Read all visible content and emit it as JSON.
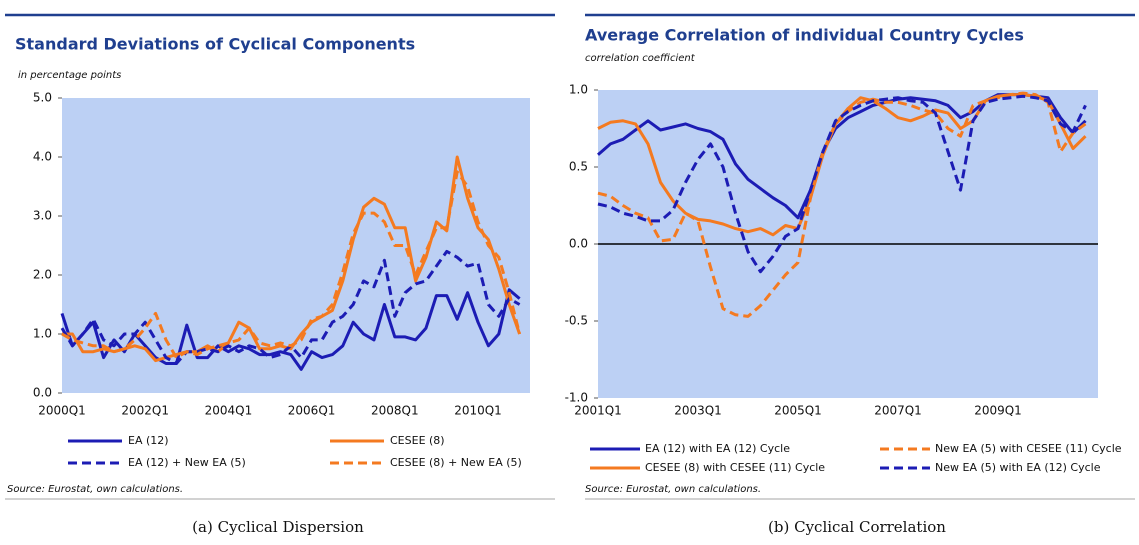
{
  "chart_data": [
    {
      "type": "line",
      "title": "Standard Deviations of Cyclical Components",
      "subtitle": "in percentage points",
      "source": "Source: Eurostat, own calculations.",
      "caption": "(a)  Cyclical Dispersion",
      "categories": [
        "2000Q1",
        null,
        null,
        null,
        null,
        null,
        null,
        null,
        "2002Q1",
        null,
        null,
        null,
        null,
        null,
        null,
        null,
        "2004Q1",
        null,
        null,
        null,
        null,
        null,
        null,
        null,
        "2006Q1",
        null,
        null,
        null,
        null,
        null,
        null,
        null,
        "2008Q1",
        null,
        null,
        null,
        null,
        null,
        null,
        null,
        "2010Q1",
        null,
        null,
        null,
        null
      ],
      "ylim": [
        0,
        5
      ],
      "yticks": [
        {
          "value": 0,
          "label": "0.0"
        },
        {
          "value": 1,
          "label": "1.0"
        },
        {
          "value": 2,
          "label": "2.0"
        },
        {
          "value": 3,
          "label": "3.0"
        },
        {
          "value": 4,
          "label": "4.0"
        },
        {
          "value": 5,
          "label": "5.0"
        }
      ],
      "plot_background": "#bcd0f4",
      "series": [
        {
          "name": "EA (12)",
          "color": "#1c1cb4",
          "dashed": false,
          "values": [
            1.35,
            0.8,
            1.0,
            1.2,
            0.6,
            0.9,
            0.7,
            1.0,
            0.8,
            0.6,
            0.5,
            0.5,
            1.15,
            0.6,
            0.6,
            0.8,
            0.7,
            0.8,
            0.75,
            0.65,
            0.65,
            0.7,
            0.65,
            0.4,
            0.7,
            0.6,
            0.65,
            0.8,
            1.2,
            1.0,
            0.9,
            1.5,
            0.95,
            0.95,
            0.9,
            1.1,
            1.65,
            1.65,
            1.25,
            1.7,
            1.2,
            0.8,
            1.0,
            1.75,
            1.6
          ]
        },
        {
          "name": "CESEE (8)",
          "color": "#f47a20",
          "dashed": false,
          "values": [
            1.0,
            1.0,
            0.7,
            0.7,
            0.75,
            0.7,
            0.75,
            0.8,
            0.75,
            0.55,
            0.6,
            0.65,
            0.7,
            0.7,
            0.8,
            0.7,
            0.85,
            1.2,
            1.1,
            0.75,
            0.75,
            0.8,
            0.75,
            1.0,
            1.2,
            1.3,
            1.4,
            1.9,
            2.6,
            3.15,
            3.3,
            3.2,
            2.8,
            2.8,
            1.9,
            2.3,
            2.9,
            2.75,
            4.0,
            3.3,
            2.8,
            2.6,
            2.1,
            1.5,
            1.0
          ]
        },
        {
          "name": "EA (12) + New EA (5)",
          "color": "#1c1cb4",
          "dashed": true,
          "values": [
            1.1,
            0.8,
            1.0,
            1.25,
            0.9,
            0.8,
            1.0,
            1.0,
            1.2,
            0.9,
            0.6,
            0.5,
            0.7,
            0.7,
            0.75,
            0.7,
            0.8,
            0.7,
            0.8,
            0.75,
            0.6,
            0.65,
            0.8,
            0.6,
            0.9,
            0.9,
            1.2,
            1.3,
            1.5,
            1.9,
            1.8,
            2.25,
            1.3,
            1.7,
            1.85,
            1.9,
            2.15,
            2.4,
            2.3,
            2.15,
            2.2,
            1.5,
            1.3,
            1.6,
            1.5
          ]
        },
        {
          "name": "CESEE (8) + New EA (5)",
          "color": "#f47a20",
          "dashed": true,
          "values": [
            1.0,
            0.9,
            0.85,
            0.8,
            0.8,
            0.7,
            0.75,
            0.9,
            1.1,
            1.35,
            0.9,
            0.6,
            0.7,
            0.65,
            0.75,
            0.8,
            0.85,
            0.9,
            1.1,
            0.85,
            0.8,
            0.85,
            0.8,
            0.9,
            1.25,
            1.3,
            1.5,
            2.05,
            2.7,
            3.05,
            3.05,
            2.9,
            2.5,
            2.5,
            2.0,
            2.4,
            2.8,
            2.8,
            3.75,
            3.5,
            2.9,
            2.5,
            2.3,
            1.7,
            1.0
          ]
        }
      ]
    },
    {
      "type": "line",
      "title": "Average Correlation of individual Country Cycles",
      "subtitle": "correlation coefficient",
      "source": "Source: Eurostat, own calculations.",
      "caption": "(b)  Cyclical Correlation",
      "categories": [
        "2001Q1",
        null,
        null,
        null,
        null,
        null,
        null,
        null,
        "2003Q1",
        null,
        null,
        null,
        null,
        null,
        null,
        null,
        "2005Q1",
        null,
        null,
        null,
        null,
        null,
        null,
        null,
        "2007Q1",
        null,
        null,
        null,
        null,
        null,
        null,
        null,
        "2009Q1",
        null,
        null,
        null,
        null,
        null,
        null,
        null
      ],
      "ylim": [
        -1,
        1
      ],
      "yticks": [
        {
          "value": -1,
          "label": "-1.0"
        },
        {
          "value": -0.5,
          "label": "-0.5"
        },
        {
          "value": 0,
          "label": "0.0"
        },
        {
          "value": 0.5,
          "label": "0.5"
        },
        {
          "value": 1,
          "label": "1.0"
        }
      ],
      "zero_line": true,
      "plot_background": "#bcd0f4",
      "series": [
        {
          "name": "EA (12) with EA (12) Cycle",
          "color": "#1c1cb4",
          "dashed": false,
          "values": [
            0.58,
            0.65,
            0.68,
            0.74,
            0.8,
            0.74,
            0.76,
            0.78,
            0.75,
            0.73,
            0.68,
            0.52,
            0.42,
            0.36,
            0.3,
            0.25,
            0.17,
            0.35,
            0.6,
            0.75,
            0.82,
            0.86,
            0.9,
            0.92,
            0.94,
            0.95,
            0.94,
            0.93,
            0.9,
            0.82,
            0.86,
            0.93,
            0.97,
            0.97,
            0.97,
            0.96,
            0.95,
            0.82,
            0.72,
            0.8
          ]
        },
        {
          "name": "New EA (5) with CESEE (11) Cycle",
          "color": "#f47a20",
          "dashed": true,
          "values": [
            0.33,
            0.31,
            0.25,
            0.2,
            0.17,
            0.02,
            0.03,
            0.2,
            0.15,
            -0.15,
            -0.42,
            -0.46,
            -0.47,
            -0.4,
            -0.3,
            -0.2,
            -0.12,
            0.3,
            0.6,
            0.78,
            0.86,
            0.92,
            0.94,
            0.92,
            0.92,
            0.9,
            0.87,
            0.85,
            0.75,
            0.7,
            0.9,
            0.93,
            0.95,
            0.97,
            0.98,
            0.97,
            0.92,
            0.6,
            0.72,
            0.78
          ]
        },
        {
          "name": "CESEE (8) with CESEE (11) Cycle",
          "color": "#f47a20",
          "dashed": false,
          "values": [
            0.75,
            0.79,
            0.8,
            0.78,
            0.65,
            0.4,
            0.28,
            0.2,
            0.16,
            0.15,
            0.13,
            0.1,
            0.08,
            0.1,
            0.06,
            0.12,
            0.1,
            0.3,
            0.58,
            0.78,
            0.88,
            0.95,
            0.93,
            0.88,
            0.82,
            0.8,
            0.83,
            0.87,
            0.85,
            0.75,
            0.8,
            0.93,
            0.96,
            0.97,
            0.97,
            0.96,
            0.93,
            0.78,
            0.62,
            0.7
          ]
        },
        {
          "name": "New EA (5) with EA (12) Cycle",
          "color": "#1c1cb4",
          "dashed": true,
          "values": [
            0.26,
            0.24,
            0.2,
            0.18,
            0.15,
            0.15,
            0.22,
            0.4,
            0.55,
            0.65,
            0.5,
            0.2,
            -0.05,
            -0.18,
            -0.08,
            0.05,
            0.1,
            0.35,
            0.6,
            0.8,
            0.86,
            0.9,
            0.93,
            0.94,
            0.95,
            0.93,
            0.92,
            0.85,
            0.6,
            0.35,
            0.8,
            0.92,
            0.94,
            0.95,
            0.96,
            0.95,
            0.93,
            0.78,
            0.73,
            0.9
          ]
        }
      ]
    }
  ]
}
